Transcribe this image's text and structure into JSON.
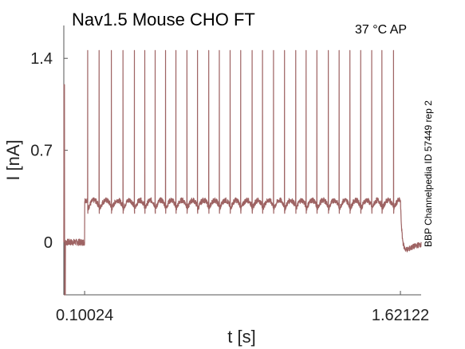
{
  "chart_data": {
    "type": "line",
    "title": "Nav1.5  Mouse  CHO FT",
    "annotation": "37 °C  AP",
    "side_label": "BBP Channelpedia ID 57449 rep 2",
    "xlabel": "t [s]",
    "ylabel": "I [nA]",
    "xlim": [
      0.0,
      1.721
    ],
    "ylim": [
      -0.4,
      1.65
    ],
    "x_ticks": [
      {
        "value": 0.10024,
        "label": "0.10024"
      },
      {
        "value": 1.62122,
        "label": "1.62122"
      }
    ],
    "y_ticks": [
      {
        "value": 0,
        "label": "0"
      },
      {
        "value": 0.7,
        "label": "0.7"
      },
      {
        "value": 1.4,
        "label": "1.4"
      }
    ],
    "grid": false,
    "line_color": "#9e6363",
    "series": [
      {
        "baseline": 0.0,
        "step_on": 0.10024,
        "step_off": 1.62122,
        "step_level": 0.32,
        "interspike_trough": 0.22,
        "initial_transient": [
          1.2,
          -0.45
        ],
        "spike_peak": 1.46,
        "spike_times": [
          0.115,
          0.17,
          0.229,
          0.285,
          0.34,
          0.39,
          0.44,
          0.49,
          0.54,
          0.593,
          0.644,
          0.698,
          0.749,
          0.801,
          0.852,
          0.907,
          0.957,
          1.01,
          1.063,
          1.117,
          1.167,
          1.219,
          1.274,
          1.326,
          1.378,
          1.43,
          1.483,
          1.532,
          1.588
        ]
      }
    ]
  }
}
